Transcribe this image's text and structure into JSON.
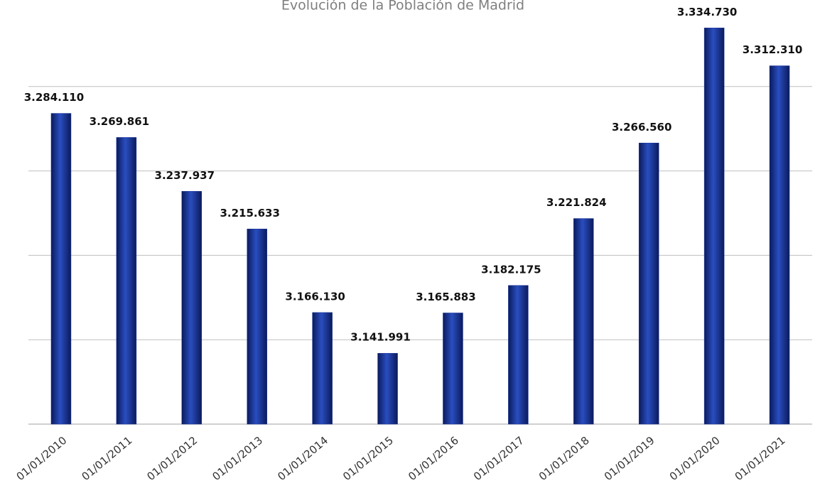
{
  "chart_data": {
    "type": "bar",
    "title": "Evolución de la Población de Madrid",
    "categories": [
      "01/01/2010",
      "01/01/2011",
      "01/01/2012",
      "01/01/2013",
      "01/01/2014",
      "01/01/2015",
      "01/01/2016",
      "01/01/2017",
      "01/01/2018",
      "01/01/2019",
      "01/01/2020",
      "01/01/2021"
    ],
    "values": [
      3284110,
      3269861,
      3237937,
      3215633,
      3166130,
      3141991,
      3165883,
      3182175,
      3221824,
      3266560,
      3334730,
      3312310
    ],
    "value_labels": [
      "3.284.110",
      "3.269.861",
      "3.237.937",
      "3.215.633",
      "3.166.130",
      "3.141.991",
      "3.165.883",
      "3.182.175",
      "3.221.824",
      "3.266.560",
      "3.334.730",
      "3.312.310"
    ],
    "color": "#1f3a9e",
    "ylim": [
      3100000,
      3350000
    ],
    "yticks": [
      3100000,
      3150000,
      3200000,
      3250000,
      3300000
    ],
    "grid": true
  }
}
